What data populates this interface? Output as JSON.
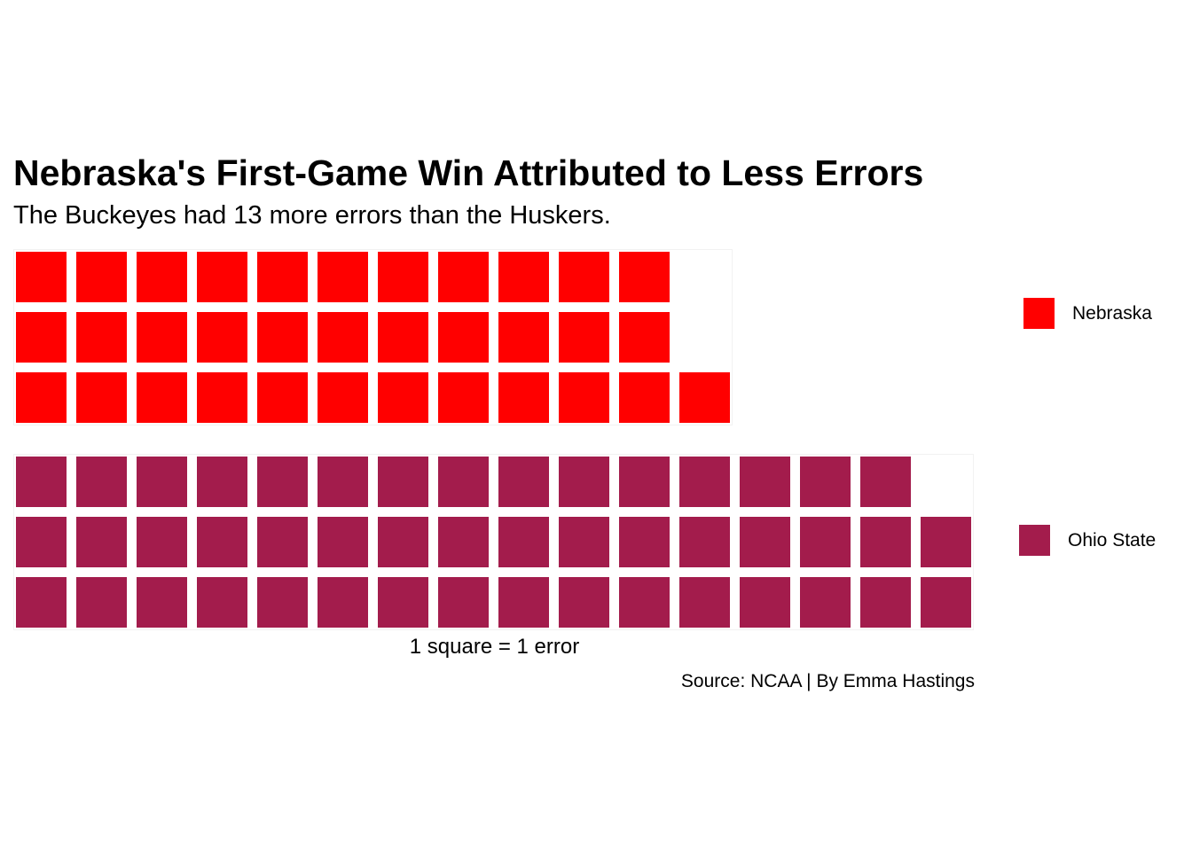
{
  "chart_data": {
    "type": "waffle",
    "title": "Nebraska's First-Game Win Attributed to Less Errors",
    "subtitle": "The Buckeyes had 13 more errors than the Huskers.",
    "xlabel": "1 square = 1 error",
    "caption": "Source: NCAA | By Emma Hastings",
    "rows_per_team": 3,
    "legend_position": "right",
    "grid": false,
    "series": [
      {
        "name": "Nebraska",
        "value": 34,
        "color": "#FF0000"
      },
      {
        "name": "Ohio State",
        "value": 47,
        "color": "#A31C4C"
      }
    ]
  }
}
